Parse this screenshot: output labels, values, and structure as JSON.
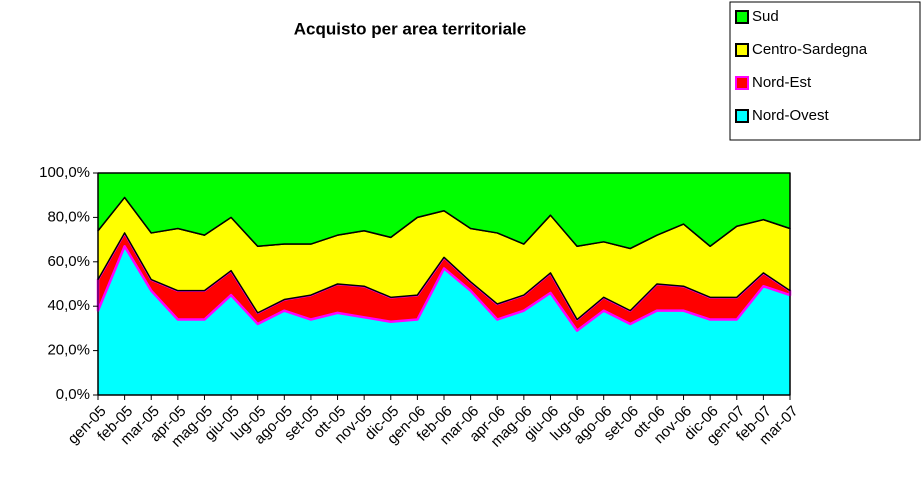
{
  "chart_data": {
    "type": "stacked_area_100",
    "title": "Acquisto per area territoriale",
    "categories": [
      "gen-05",
      "feb-05",
      "mar-05",
      "apr-05",
      "mag-05",
      "giu-05",
      "lug-05",
      "ago-05",
      "set-05",
      "ott-05",
      "nov-05",
      "dic-05",
      "gen-06",
      "feb-06",
      "mar-06",
      "apr-06",
      "mag-06",
      "giu-06",
      "lug-06",
      "ago-06",
      "set-06",
      "ott-06",
      "nov-06",
      "dic-06",
      "gen-07",
      "feb-07",
      "mar-07"
    ],
    "series": [
      {
        "name": "Nord-Ovest",
        "color": "#00ffff",
        "label_color": "#000080",
        "values": [
          38,
          67,
          47,
          34,
          34,
          45,
          32,
          38,
          34,
          37,
          35,
          33,
          34,
          57,
          47,
          34,
          38,
          46,
          29,
          38,
          32,
          38,
          38,
          34,
          34,
          49,
          45
        ]
      },
      {
        "name": "Nord-Est",
        "color": "#ff0000",
        "label_color": "#ff00ff",
        "values": [
          14,
          6,
          5,
          13,
          13,
          11,
          5,
          5,
          11,
          13,
          14,
          11,
          11,
          5,
          4,
          7,
          7,
          9,
          5,
          6,
          6,
          12,
          11,
          10,
          10,
          6,
          2
        ]
      },
      {
        "name": "Centro-Sardegna",
        "color": "#ffff00",
        "label_color": "#000000",
        "values": [
          22,
          16,
          21,
          28,
          25,
          24,
          30,
          25,
          23,
          22,
          25,
          27,
          35,
          21,
          24,
          32,
          23,
          26,
          33,
          25,
          28,
          22,
          28,
          23,
          32,
          24,
          28
        ]
      },
      {
        "name": "Sud",
        "color": "#00ff00",
        "label_color": "#000000",
        "values": [
          26,
          11,
          27,
          25,
          28,
          20,
          33,
          32,
          32,
          28,
          26,
          29,
          20,
          17,
          25,
          27,
          32,
          19,
          33,
          31,
          34,
          28,
          23,
          33,
          24,
          21,
          25
        ]
      }
    ],
    "ylim": [
      0,
      100
    ],
    "yticks": [
      {
        "value": 0,
        "label": "0,0%"
      },
      {
        "value": 20,
        "label": "20,0%"
      },
      {
        "value": 40,
        "label": "40,0%"
      },
      {
        "value": 60,
        "label": "60,0%"
      },
      {
        "value": 80,
        "label": "80,0%"
      },
      {
        "value": 100,
        "label": "100,0%"
      }
    ],
    "legend": "top-right"
  }
}
